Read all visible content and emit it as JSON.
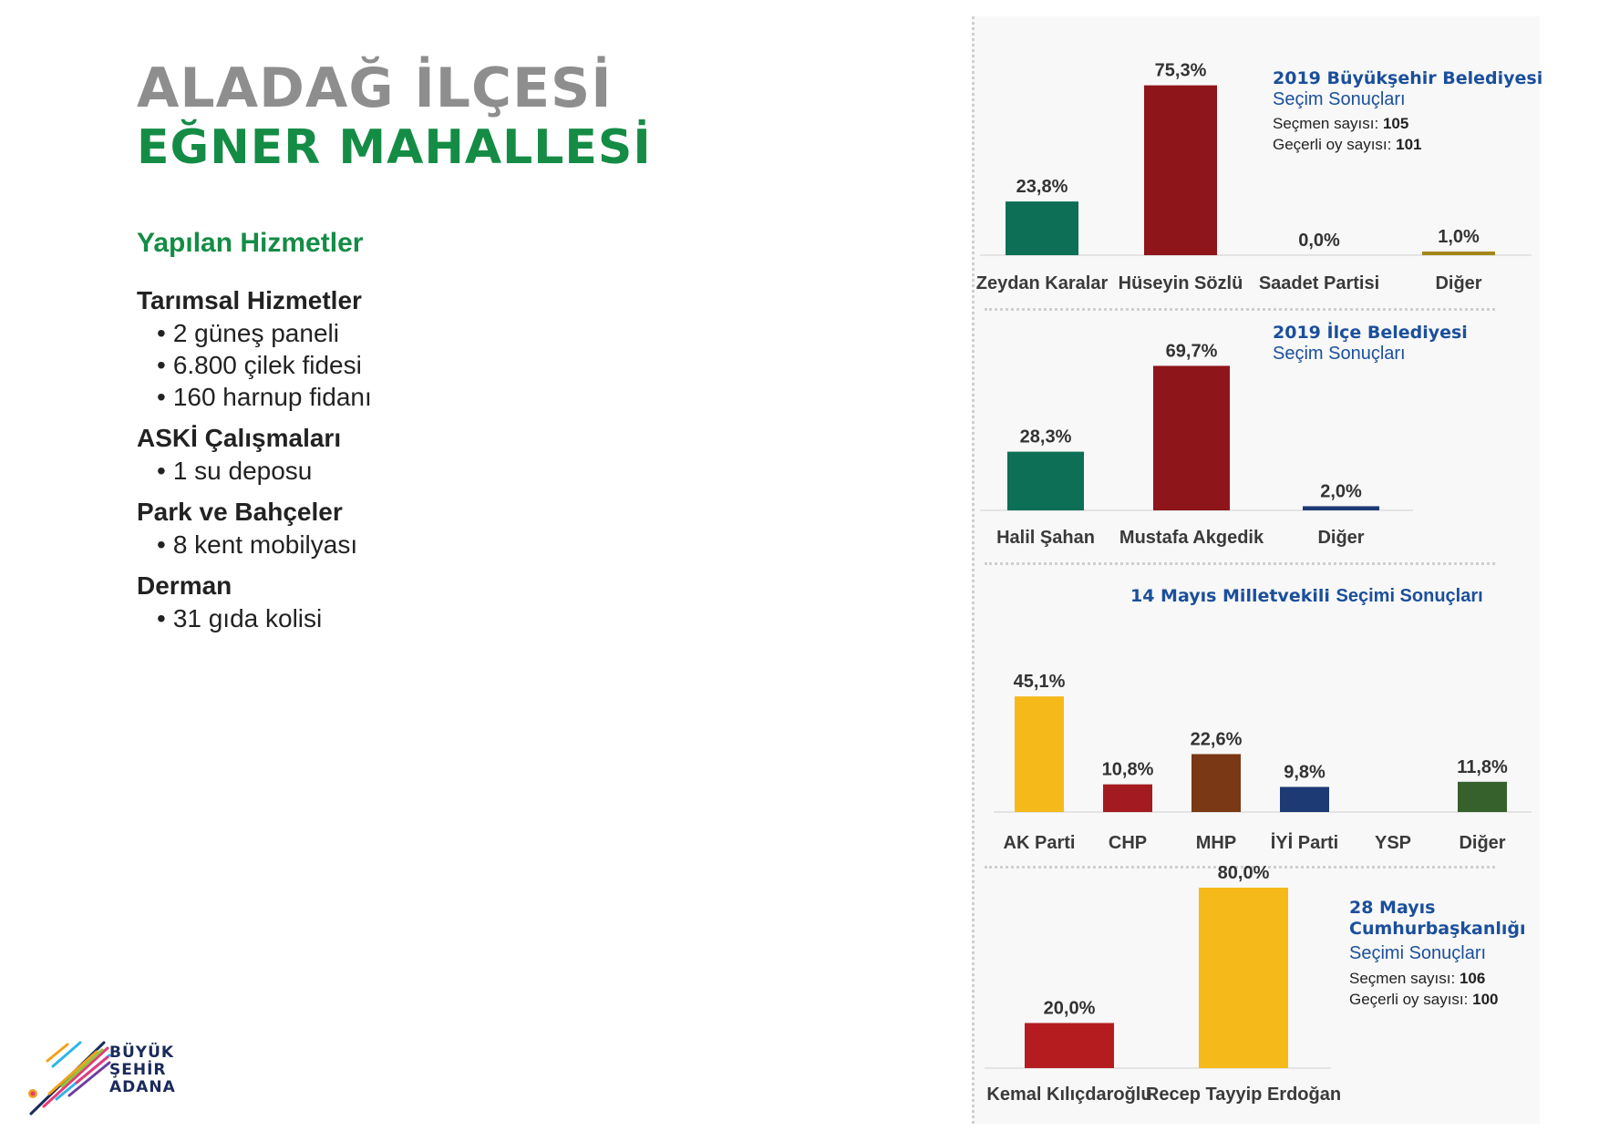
{
  "header": {
    "district": "ALADAĞ İLÇESİ",
    "neighborhood": "EĞNER MAHALLESİ"
  },
  "services": {
    "heading": "Yapılan Hizmetler",
    "categories": [
      {
        "title": "Tarımsal Hizmetler",
        "items": [
          "2 güneş paneli",
          "6.800 çilek fidesi",
          "160 harnup fidanı"
        ]
      },
      {
        "title": "ASKİ Çalışmaları",
        "items": [
          "1 su deposu"
        ]
      },
      {
        "title": "Park ve Bahçeler",
        "items": [
          "8 kent mobilyası"
        ]
      },
      {
        "title": "Derman",
        "items": [
          "31 gıda kolisi"
        ]
      }
    ]
  },
  "logo": {
    "lines": [
      "BÜYÜK",
      "ŞEHİR",
      "ADANA"
    ]
  },
  "chart_data": [
    {
      "type": "bar",
      "title": "2019 Büyükşehir Belediyesi",
      "subtitle": "Seçim Sonuçları",
      "info": [
        {
          "label": "Seçmen sayısı:",
          "value": "105"
        },
        {
          "label": "Geçerli oy sayısı:",
          "value": "101"
        }
      ],
      "categories": [
        "Zeydan Karalar",
        "Hüseyin Sözlü",
        "Saadet Partisi",
        "Diğer"
      ],
      "values": [
        23.8,
        75.3,
        0.0,
        1.0
      ],
      "labels": [
        "23,8%",
        "75,3%",
        "0,0%",
        "1,0%"
      ],
      "colors": [
        "#0c6f56",
        "#8e1519",
        "#9c9c9c",
        "#a4861a"
      ],
      "unit": "%"
    },
    {
      "type": "bar",
      "title": "2019 İlçe Belediyesi",
      "subtitle": "Seçim Sonuçları",
      "categories": [
        "Halil Şahan",
        "Mustafa Akgedik",
        "Diğer"
      ],
      "values": [
        28.3,
        69.7,
        2.0
      ],
      "labels": [
        "28,3%",
        "69,7%",
        "2,0%"
      ],
      "colors": [
        "#0c6f56",
        "#8e1519",
        "#1e3a75"
      ],
      "unit": "%"
    },
    {
      "type": "bar",
      "title": "14 Mayıs Milletvekili",
      "subtitle": "Seçimi Sonuçları",
      "categories": [
        "AK Parti",
        "CHP",
        "MHP",
        "İYİ Parti",
        "YSP",
        "Diğer"
      ],
      "values": [
        45.1,
        10.8,
        22.6,
        9.8,
        null,
        11.8
      ],
      "labels": [
        "45,1%",
        "10,8%",
        "22,6%",
        "9,8%",
        "",
        "11,8%"
      ],
      "colors": [
        "#f6b91a",
        "#a31b20",
        "#7a3814",
        "#1e3a75",
        "#888888",
        "#36602c"
      ],
      "unit": "%"
    },
    {
      "type": "bar",
      "title": "28 Mayıs Cumhurbaşkanlığı",
      "subtitle": "Seçimi Sonuçları",
      "info": [
        {
          "label": "Seçmen sayısı:",
          "value": "106"
        },
        {
          "label": "Geçerli oy sayısı:",
          "value": "100"
        }
      ],
      "categories": [
        "Kemal Kılıçdaroğlu",
        "Recep Tayyip Erdoğan"
      ],
      "values": [
        20.0,
        80.0
      ],
      "labels": [
        "20,0%",
        "80,0%"
      ],
      "colors": [
        "#b51c1f",
        "#f6b91a"
      ],
      "unit": "%"
    }
  ]
}
